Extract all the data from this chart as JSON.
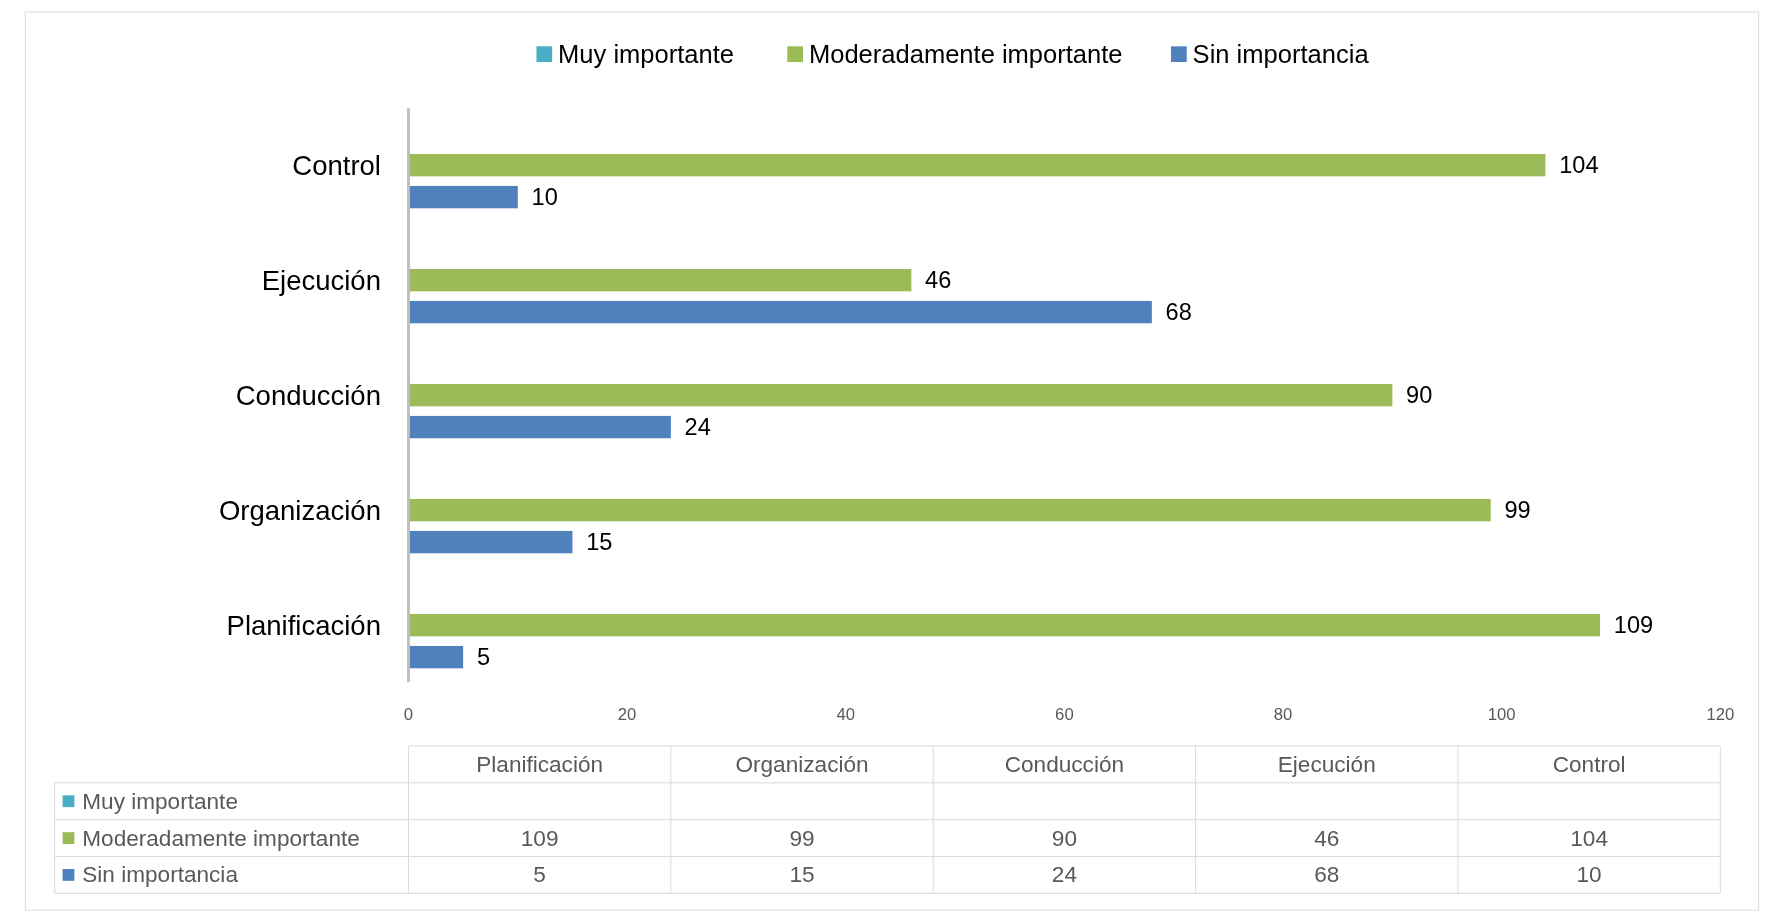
{
  "chart_data": [
    {
      "type": "bar",
      "orientation": "horizontal",
      "categories": [
        "Control",
        "Ejecución",
        "Conducción",
        "Organización",
        "Planificación"
      ],
      "series": [
        {
          "name": "Muy importante",
          "color": "#4bacc6",
          "values": [
            null,
            null,
            null,
            null,
            null
          ]
        },
        {
          "name": "Moderadamente importante",
          "color": "#9bbb59",
          "values": [
            104,
            46,
            90,
            99,
            109
          ]
        },
        {
          "name": "Sin importancia",
          "color": "#4f81bd",
          "values": [
            10,
            68,
            24,
            15,
            5
          ]
        }
      ],
      "xlim": [
        0,
        120
      ],
      "xticks": [
        0,
        20,
        40,
        60,
        80,
        100,
        120
      ],
      "legend": "top",
      "data_labels": true
    },
    {
      "type": "other",
      "categories": [
        "Planificación",
        "Organización",
        "Conducción",
        "Ejecución",
        "Control"
      ],
      "series": [
        {
          "name": "Muy importante",
          "color": "#4bacc6",
          "values": [
            null,
            null,
            null,
            null,
            null
          ]
        },
        {
          "name": "Moderadamente importante",
          "color": "#9bbb59",
          "values": [
            109,
            99,
            90,
            46,
            104
          ]
        },
        {
          "name": "Sin importancia",
          "color": "#4f81bd",
          "values": [
            5,
            15,
            24,
            68,
            10
          ]
        }
      ],
      "data_labels": true
    }
  ]
}
